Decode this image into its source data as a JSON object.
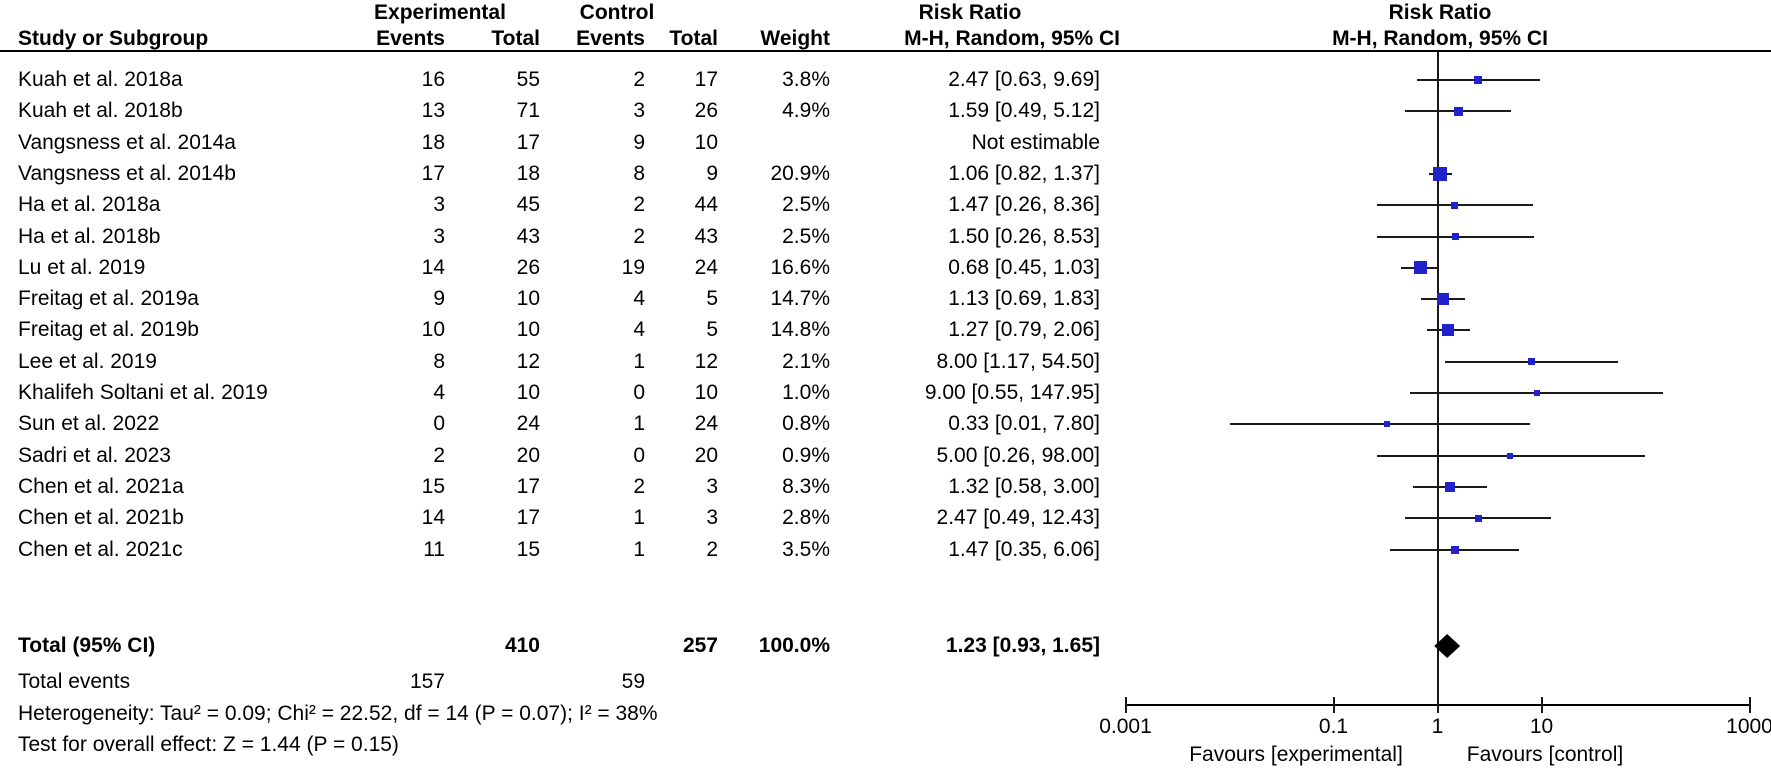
{
  "header": {
    "group_experimental": "Experimental",
    "group_control": "Control",
    "group_risk_ratio_left": "Risk Ratio",
    "group_risk_ratio_right": "Risk Ratio",
    "col_study": "Study or Subgroup",
    "col_events_exp": "Events",
    "col_total_exp": "Total",
    "col_events_ctrl": "Events",
    "col_total_ctrl": "Total",
    "col_weight": "Weight",
    "col_mh_left": "M-H, Random, 95% CI",
    "col_mh_right": "M-H, Random, 95% CI"
  },
  "chart_data": {
    "type": "forest",
    "effect_measure": "Risk Ratio",
    "method": "Mantel-Haenszel, Random effects, 95% CI",
    "x_scale": "log10",
    "axis_ticks": [
      0.001,
      0.1,
      1,
      10,
      1000
    ],
    "axis_tick_labels": [
      "0.001",
      "0.1",
      "1",
      "10",
      "1000"
    ],
    "favours_left": "Favours [experimental]",
    "favours_right": "Favours [control]",
    "marker_color": "#2222CC",
    "diamond_color": "#000000",
    "studies": [
      {
        "name": "Kuah et al. 2018a",
        "events_exp": "16",
        "total_exp": "55",
        "events_ctrl": "2",
        "total_ctrl": "17",
        "weight": "3.8%",
        "weight_value": 3.8,
        "ci_text": "2.47 [0.63, 9.69]",
        "rr": 2.47,
        "ci_low": 0.63,
        "ci_high": 9.69,
        "estimable": true
      },
      {
        "name": "Kuah et al. 2018b",
        "events_exp": "13",
        "total_exp": "71",
        "events_ctrl": "3",
        "total_ctrl": "26",
        "weight": "4.9%",
        "weight_value": 4.9,
        "ci_text": "1.59 [0.49, 5.12]",
        "rr": 1.59,
        "ci_low": 0.49,
        "ci_high": 5.12,
        "estimable": true
      },
      {
        "name": "Vangsness et al. 2014a",
        "events_exp": "18",
        "total_exp": "17",
        "events_ctrl": "9",
        "total_ctrl": "10",
        "weight": "",
        "weight_value": 0,
        "ci_text": "Not estimable",
        "rr": null,
        "ci_low": null,
        "ci_high": null,
        "estimable": false
      },
      {
        "name": "Vangsness et al. 2014b",
        "events_exp": "17",
        "total_exp": "18",
        "events_ctrl": "8",
        "total_ctrl": "9",
        "weight": "20.9%",
        "weight_value": 20.9,
        "ci_text": "1.06 [0.82, 1.37]",
        "rr": 1.06,
        "ci_low": 0.82,
        "ci_high": 1.37,
        "estimable": true
      },
      {
        "name": "Ha et al. 2018a",
        "events_exp": "3",
        "total_exp": "45",
        "events_ctrl": "2",
        "total_ctrl": "44",
        "weight": "2.5%",
        "weight_value": 2.5,
        "ci_text": "1.47 [0.26, 8.36]",
        "rr": 1.47,
        "ci_low": 0.26,
        "ci_high": 8.36,
        "estimable": true
      },
      {
        "name": "Ha et al. 2018b",
        "events_exp": "3",
        "total_exp": "43",
        "events_ctrl": "2",
        "total_ctrl": "43",
        "weight": "2.5%",
        "weight_value": 2.5,
        "ci_text": "1.50 [0.26, 8.53]",
        "rr": 1.5,
        "ci_low": 0.26,
        "ci_high": 8.53,
        "estimable": true
      },
      {
        "name": "Lu et al. 2019",
        "events_exp": "14",
        "total_exp": "26",
        "events_ctrl": "19",
        "total_ctrl": "24",
        "weight": "16.6%",
        "weight_value": 16.6,
        "ci_text": "0.68 [0.45, 1.03]",
        "rr": 0.68,
        "ci_low": 0.45,
        "ci_high": 1.03,
        "estimable": true
      },
      {
        "name": "Freitag et al. 2019a",
        "events_exp": "9",
        "total_exp": "10",
        "events_ctrl": "4",
        "total_ctrl": "5",
        "weight": "14.7%",
        "weight_value": 14.7,
        "ci_text": "1.13 [0.69, 1.83]",
        "rr": 1.13,
        "ci_low": 0.69,
        "ci_high": 1.83,
        "estimable": true
      },
      {
        "name": "Freitag et al. 2019b",
        "events_exp": "10",
        "total_exp": "10",
        "events_ctrl": "4",
        "total_ctrl": "5",
        "weight": "14.8%",
        "weight_value": 14.8,
        "ci_text": "1.27 [0.79, 2.06]",
        "rr": 1.27,
        "ci_low": 0.79,
        "ci_high": 2.06,
        "estimable": true
      },
      {
        "name": "Lee et al. 2019",
        "events_exp": "8",
        "total_exp": "12",
        "events_ctrl": "1",
        "total_ctrl": "12",
        "weight": "2.1%",
        "weight_value": 2.1,
        "ci_text": "8.00 [1.17, 54.50]",
        "rr": 8.0,
        "ci_low": 1.17,
        "ci_high": 54.5,
        "estimable": true
      },
      {
        "name": "Khalifeh Soltani et al. 2019",
        "events_exp": "4",
        "total_exp": "10",
        "events_ctrl": "0",
        "total_ctrl": "10",
        "weight": "1.0%",
        "weight_value": 1.0,
        "ci_text": "9.00 [0.55, 147.95]",
        "rr": 9.0,
        "ci_low": 0.55,
        "ci_high": 147.95,
        "estimable": true
      },
      {
        "name": "Sun et al. 2022",
        "events_exp": "0",
        "total_exp": "24",
        "events_ctrl": "1",
        "total_ctrl": "24",
        "weight": "0.8%",
        "weight_value": 0.8,
        "ci_text": "0.33 [0.01, 7.80]",
        "rr": 0.33,
        "ci_low": 0.01,
        "ci_high": 7.8,
        "estimable": true
      },
      {
        "name": "Sadri et al. 2023",
        "events_exp": "2",
        "total_exp": "20",
        "events_ctrl": "0",
        "total_ctrl": "20",
        "weight": "0.9%",
        "weight_value": 0.9,
        "ci_text": "5.00 [0.26, 98.00]",
        "rr": 5.0,
        "ci_low": 0.26,
        "ci_high": 98.0,
        "estimable": true
      },
      {
        "name": "Chen et al. 2021a",
        "events_exp": "15",
        "total_exp": "17",
        "events_ctrl": "2",
        "total_ctrl": "3",
        "weight": "8.3%",
        "weight_value": 8.3,
        "ci_text": "1.32 [0.58, 3.00]",
        "rr": 1.32,
        "ci_low": 0.58,
        "ci_high": 3.0,
        "estimable": true
      },
      {
        "name": "Chen et al. 2021b",
        "events_exp": "14",
        "total_exp": "17",
        "events_ctrl": "1",
        "total_ctrl": "3",
        "weight": "2.8%",
        "weight_value": 2.8,
        "ci_text": "2.47 [0.49, 12.43]",
        "rr": 2.47,
        "ci_low": 0.49,
        "ci_high": 12.43,
        "estimable": true
      },
      {
        "name": "Chen et al. 2021c",
        "events_exp": "11",
        "total_exp": "15",
        "events_ctrl": "1",
        "total_ctrl": "2",
        "weight": "3.5%",
        "weight_value": 3.5,
        "ci_text": "1.47 [0.35, 6.06]",
        "rr": 1.47,
        "ci_low": 0.35,
        "ci_high": 6.06,
        "estimable": true
      }
    ],
    "total": {
      "label": "Total (95% CI)",
      "total_exp": "410",
      "total_ctrl": "257",
      "weight": "100.0%",
      "ci_text": "1.23 [0.93, 1.65]",
      "rr": 1.23,
      "ci_low": 0.93,
      "ci_high": 1.65
    },
    "total_events": {
      "label": "Total events",
      "experimental": "157",
      "control": "59"
    },
    "heterogeneity": "Heterogeneity: Tau² = 0.09; Chi² = 22.52, df = 14 (P = 0.07); I² = 38%",
    "overall_effect": "Test for overall effect: Z = 1.44 (P = 0.15)"
  }
}
